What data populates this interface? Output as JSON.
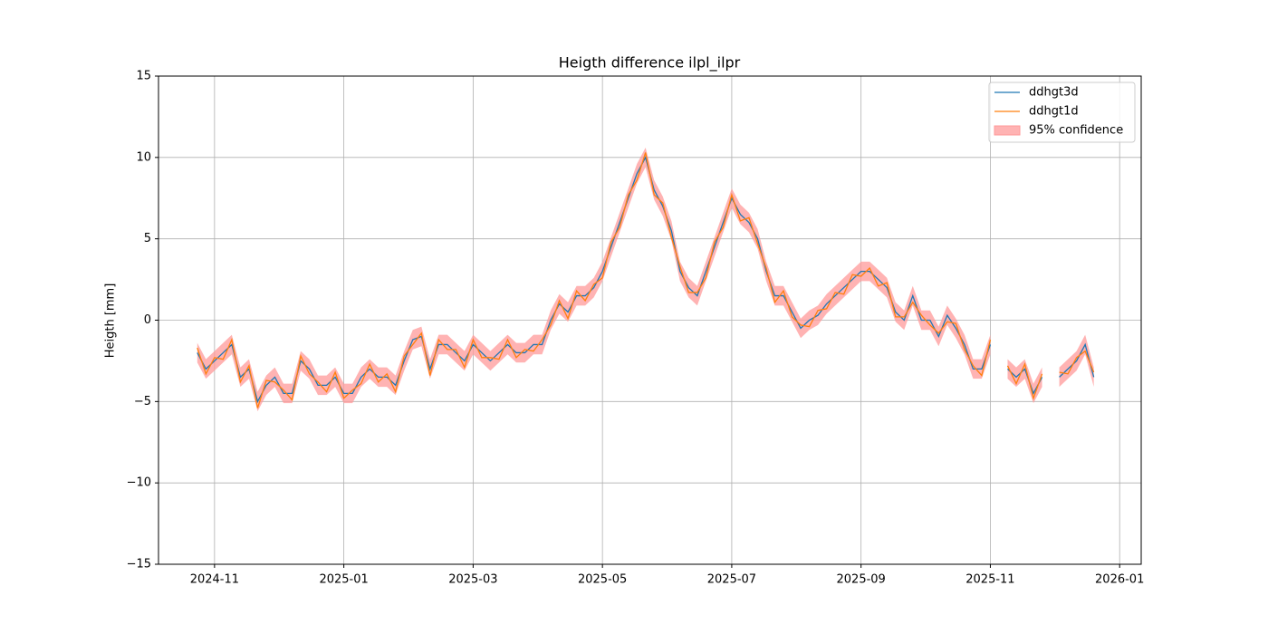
{
  "chart_data": {
    "type": "line",
    "title": "Heigth difference ilpl_ilpr",
    "y_label": "Heigth [mm]",
    "categories": [
      null,
      null,
      "2024-11",
      null,
      null,
      null,
      null,
      null,
      null,
      null,
      null,
      null,
      null,
      null,
      null,
      null,
      null,
      "2025-01",
      null,
      null,
      null,
      null,
      null,
      null,
      null,
      null,
      null,
      null,
      null,
      null,
      null,
      null,
      "2025-03",
      null,
      null,
      null,
      null,
      null,
      null,
      null,
      null,
      null,
      null,
      null,
      null,
      null,
      null,
      "2025-05",
      null,
      null,
      null,
      null,
      null,
      null,
      null,
      null,
      null,
      null,
      null,
      null,
      null,
      null,
      "2025-07",
      null,
      null,
      null,
      null,
      null,
      null,
      null,
      null,
      null,
      null,
      null,
      null,
      null,
      null,
      "2025-09",
      null,
      null,
      null,
      null,
      null,
      null,
      null,
      null,
      null,
      null,
      null,
      null,
      null,
      null,
      "2025-11",
      null,
      null,
      null,
      null,
      null,
      null,
      null,
      null,
      null,
      null,
      null,
      null,
      null,
      null,
      "2026-01"
    ],
    "series": [
      {
        "name": "ddhgt3d",
        "color": "#1f77b4",
        "values": [
          -2,
          -3,
          -2.5,
          -2,
          -1.5,
          -3.5,
          -3,
          -5,
          -4,
          -3.5,
          -4.5,
          -4.5,
          -2.5,
          -3,
          -4,
          -4,
          -3.5,
          -4.5,
          -4.5,
          -3.5,
          -3,
          -3.5,
          -3.5,
          -4,
          -2.5,
          -1.2,
          -1,
          -3,
          -1.5,
          -1.5,
          -2,
          -2.5,
          -1.5,
          -2,
          -2.5,
          -2,
          -1.5,
          -2,
          -2,
          -1.5,
          -1.5,
          0,
          1,
          0.5,
          1.5,
          1.5,
          2,
          3,
          4.5,
          6,
          7.5,
          9,
          10,
          8,
          7,
          5.5,
          3,
          2,
          1.5,
          3,
          4.5,
          6,
          7.5,
          6.5,
          6,
          5,
          3,
          1.5,
          1.5,
          0.5,
          -0.5,
          0,
          0.3,
          1,
          1.5,
          2,
          2.5,
          3,
          3,
          2.5,
          2,
          0.5,
          0,
          1.5,
          0,
          0,
          -1,
          0.3,
          -0.5,
          -1.5,
          -3,
          -3,
          -1.5,
          null,
          -3,
          -3.5,
          -3,
          -4.5,
          -3.5,
          null,
          -3.5,
          -3,
          -2.5,
          -1.5,
          -3.5,
          null,
          null,
          null
        ]
      },
      {
        "name": "ddhgt1d",
        "color": "#ff7f0e",
        "values": [
          -1.7,
          -3.3,
          -2.3,
          -2.4,
          -1.2,
          -3.8,
          -2.8,
          -5.4,
          -3.7,
          -3.8,
          -4.3,
          -4.9,
          -2.2,
          -3.3,
          -3.8,
          -4.4,
          -3.2,
          -4.8,
          -4.3,
          -3.9,
          -2.7,
          -3.8,
          -3.3,
          -4.4,
          -2.2,
          -1.5,
          -0.8,
          -3.4,
          -1.2,
          -1.8,
          -1.8,
          -2.9,
          -1.2,
          -2.3,
          -2.3,
          -2.4,
          -1.2,
          -2.3,
          -1.8,
          -1.9,
          -1.2,
          -0.3,
          1.2,
          0.1,
          1.8,
          1.2,
          2.2,
          2.6,
          4.8,
          5.7,
          7.7,
          8.6,
          10.3,
          7.7,
          7.2,
          5.1,
          3.3,
          1.7,
          1.7,
          2.6,
          4.8,
          5.7,
          7.7,
          6.1,
          6.3,
          4.7,
          3.2,
          1.1,
          1.8,
          0.2,
          -0.3,
          -0.4,
          0.6,
          0.7,
          1.7,
          1.6,
          2.8,
          2.7,
          3.2,
          2.1,
          2.3,
          0.2,
          0.2,
          1.1,
          0.3,
          -0.3,
          -0.8,
          -0.1,
          -0.2,
          -1.8,
          -2.8,
          -3.4,
          -1.2,
          null,
          -2.8,
          -3.9,
          -2.7,
          -4.8,
          -3.3,
          null,
          -3.2,
          -3.3,
          -2.3,
          -1.9,
          -3.2,
          null,
          null,
          null
        ]
      }
    ],
    "band": {
      "name": "95% confidence",
      "color": "#ff9999",
      "lower": [
        -2.6,
        -3.6,
        -3.1,
        -2.6,
        -2.1,
        -4.1,
        -3.6,
        -5.6,
        -4.6,
        -4.1,
        -5.1,
        -5.1,
        -3.1,
        -3.6,
        -4.6,
        -4.6,
        -4.1,
        -5.1,
        -5.1,
        -4.1,
        -3.6,
        -4.1,
        -4.1,
        -4.6,
        -3.1,
        -1.8,
        -1.6,
        -3.6,
        -2.1,
        -2.1,
        -2.6,
        -3.1,
        -2.1,
        -2.6,
        -3.1,
        -2.6,
        -2.1,
        -2.6,
        -2.6,
        -2.1,
        -2.1,
        -0.6,
        0.4,
        -0.1,
        0.9,
        0.9,
        1.4,
        2.4,
        3.9,
        5.4,
        6.9,
        8.4,
        9.4,
        7.4,
        6.4,
        4.9,
        2.4,
        1.4,
        0.9,
        2.4,
        3.9,
        5.4,
        6.9,
        5.9,
        5.4,
        4.4,
        2.4,
        0.9,
        0.9,
        -0.1,
        -1.1,
        -0.6,
        -0.3,
        0.4,
        0.9,
        1.4,
        1.9,
        2.4,
        2.4,
        1.9,
        1.4,
        -0.1,
        -0.6,
        0.9,
        -0.6,
        -0.6,
        -1.6,
        -0.3,
        -1.1,
        -2.1,
        -3.6,
        -3.6,
        -2.1,
        null,
        -3.6,
        -4.1,
        -3.6,
        -5.1,
        -4.1,
        null,
        -4.1,
        -3.6,
        -3.1,
        -2.1,
        -4.1,
        null,
        null,
        null
      ],
      "upper": [
        -1.4,
        -2.4,
        -1.9,
        -1.4,
        -0.9,
        -2.9,
        -2.4,
        -4.4,
        -3.4,
        -2.9,
        -3.9,
        -3.9,
        -1.9,
        -2.4,
        -3.4,
        -3.4,
        -2.9,
        -3.9,
        -3.9,
        -2.9,
        -2.4,
        -2.9,
        -2.9,
        -3.4,
        -1.9,
        -0.6,
        -0.4,
        -2.4,
        -0.9,
        -0.9,
        -1.4,
        -1.9,
        -0.9,
        -1.4,
        -1.9,
        -1.4,
        -0.9,
        -1.4,
        -1.4,
        -0.9,
        -0.9,
        0.6,
        1.6,
        1.1,
        2.1,
        2.1,
        2.6,
        3.6,
        5.1,
        6.6,
        8.1,
        9.6,
        10.6,
        8.6,
        7.6,
        6.1,
        3.6,
        2.6,
        2.1,
        3.6,
        5.1,
        6.6,
        8.1,
        7.1,
        6.6,
        5.6,
        3.6,
        2.1,
        2.1,
        1.1,
        0.1,
        0.6,
        0.9,
        1.6,
        2.1,
        2.6,
        3.1,
        3.6,
        3.6,
        3.1,
        2.6,
        1.1,
        0.6,
        2.1,
        0.6,
        0.6,
        -0.4,
        0.9,
        0.1,
        -0.9,
        -2.4,
        -2.4,
        -0.9,
        null,
        -2.4,
        -2.9,
        -2.4,
        -3.9,
        -2.9,
        null,
        -2.9,
        -2.4,
        -1.9,
        -0.9,
        -2.9,
        null,
        null,
        null
      ]
    },
    "ylim": [
      -15,
      15
    ],
    "yticks": [
      {
        "value": -15,
        "label": "−15"
      },
      {
        "value": -10,
        "label": "−10"
      },
      {
        "value": -5,
        "label": "−5"
      },
      0,
      5,
      10,
      15
    ],
    "grid": true,
    "legend": "upper right"
  }
}
